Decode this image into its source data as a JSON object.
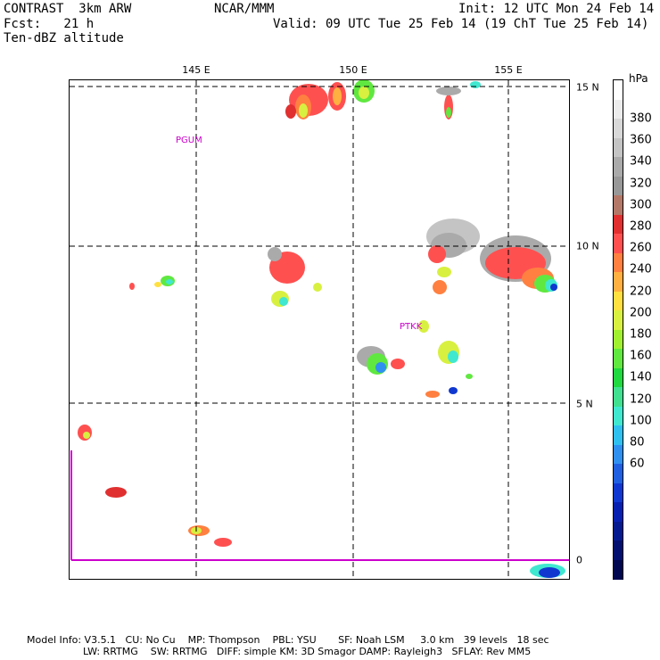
{
  "header": {
    "line1_left": "CONTRAST  3km ARW",
    "line1_center": "NCAR/MMM",
    "line1_right": "Init: 12 UTC Mon 24 Feb 14",
    "line2_left": "Fcst:   21 h",
    "line2_right": "Valid: 09 UTC Tue 25 Feb 14 (19 ChT Tue 25 Feb 14)",
    "line3_left": "Ten-dBZ altitude"
  },
  "map": {
    "lon_labels": [
      "145 E",
      "150 E",
      "155 E"
    ],
    "lat_labels": [
      "15 N",
      "10 N",
      "5 N",
      "0"
    ],
    "stations": [
      "PGUM",
      "PTKK"
    ],
    "colors": {
      "grid": "#000000",
      "equator_line": "#cc00cc"
    }
  },
  "colorbar": {
    "unit": "hPa",
    "labels": [
      "380",
      "360",
      "340",
      "320",
      "300",
      "280",
      "260",
      "240",
      "220",
      "200",
      "180",
      "160",
      "140",
      "120",
      "100",
      "80",
      "60"
    ],
    "colors": [
      "#ffffff",
      "#ececec",
      "#d8d8d8",
      "#c4c4c4",
      "#aaaaaa",
      "#989898",
      "#b47868",
      "#e03030",
      "#ff5050",
      "#ff8040",
      "#ffb040",
      "#ffe040",
      "#d8f040",
      "#a0f030",
      "#60e840",
      "#20d840",
      "#40e090",
      "#40e8d0",
      "#30c0f0",
      "#3090f0",
      "#2060e0",
      "#1038d0",
      "#0820b0",
      "#061a90",
      "#041070",
      "#020850"
    ]
  },
  "footer": {
    "line1": "Model Info: V3.5.1   CU: No Cu    MP: Thompson    PBL: YSU       SF: Noah LSM     3.0 km   39 levels   18 sec",
    "line2": "LW: RRTMG    SW: RRTMG   DIFF: simple KM: 3D Smagor DAMP: Rayleigh3   SFLAY: Rev MM5"
  }
}
